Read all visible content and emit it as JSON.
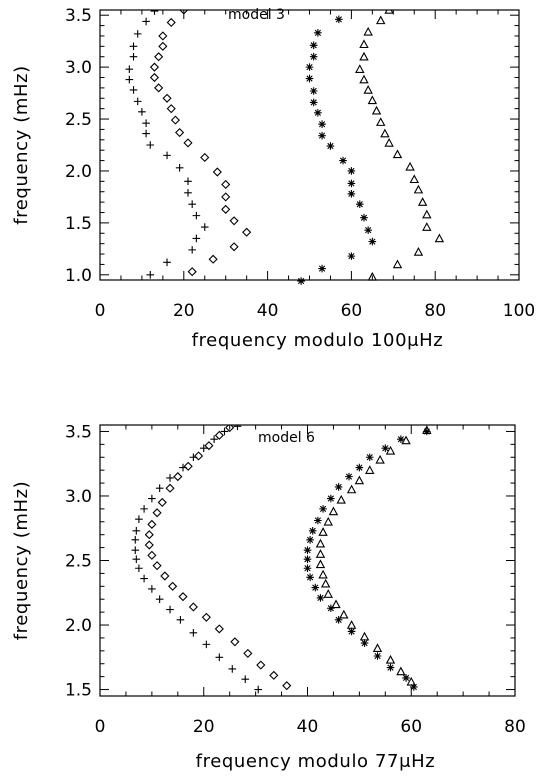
{
  "chart_data": [
    {
      "type": "scatter",
      "title": "model 3",
      "xlabel": "frequency modulo 100μHz",
      "ylabel": "frequency (mHz)",
      "xlim": [
        0,
        100
      ],
      "ylim": [
        0.95,
        3.55
      ],
      "xticks": [
        0,
        20,
        40,
        60,
        80,
        100
      ],
      "xtick_labels": [
        "0",
        "20",
        "40",
        "60",
        "80",
        "100"
      ],
      "yticks": [
        1.0,
        1.5,
        2.0,
        2.5,
        3.0,
        3.5
      ],
      "ytick_labels": [
        "1.0",
        "1.5",
        "2.0",
        "2.5",
        "3.0",
        "3.5"
      ],
      "grid": false,
      "series": [
        {
          "marker": "plus",
          "points": [
            [
              12,
              1.0
            ],
            [
              16,
              1.12
            ],
            [
              22,
              1.24
            ],
            [
              23,
              1.35
            ],
            [
              25,
              1.46
            ],
            [
              23,
              1.57
            ],
            [
              22,
              1.68
            ],
            [
              21,
              1.79
            ],
            [
              21,
              1.9
            ],
            [
              19,
              2.03
            ],
            [
              16,
              2.15
            ],
            [
              12,
              2.25
            ],
            [
              11,
              2.36
            ],
            [
              11,
              2.46
            ],
            [
              10,
              2.57
            ],
            [
              9,
              2.67
            ],
            [
              8,
              2.78
            ],
            [
              7,
              2.88
            ],
            [
              7,
              2.98
            ],
            [
              8,
              3.1
            ],
            [
              8,
              3.2
            ],
            [
              9,
              3.32
            ],
            [
              11,
              3.44
            ],
            [
              13,
              3.54
            ]
          ]
        },
        {
          "marker": "diamond",
          "points": [
            [
              22,
              1.03
            ],
            [
              27,
              1.15
            ],
            [
              32,
              1.27
            ],
            [
              35,
              1.41
            ],
            [
              32,
              1.52
            ],
            [
              30,
              1.63
            ],
            [
              30,
              1.75
            ],
            [
              30,
              1.87
            ],
            [
              28,
              1.99
            ],
            [
              25,
              2.13
            ],
            [
              21,
              2.27
            ],
            [
              19,
              2.37
            ],
            [
              18,
              2.49
            ],
            [
              17,
              2.6
            ],
            [
              16,
              2.7
            ],
            [
              14,
              2.8
            ],
            [
              13,
              2.9
            ],
            [
              13,
              3.0
            ],
            [
              14,
              3.1
            ],
            [
              15,
              3.2
            ],
            [
              15,
              3.3
            ],
            [
              17,
              3.43
            ],
            [
              20,
              3.55
            ]
          ]
        },
        {
          "marker": "asterisk",
          "points": [
            [
              48,
              0.94
            ],
            [
              53,
              1.06
            ],
            [
              60,
              1.18
            ],
            [
              65,
              1.32
            ],
            [
              64,
              1.43
            ],
            [
              63,
              1.55
            ],
            [
              62,
              1.68
            ],
            [
              60,
              1.78
            ],
            [
              60,
              1.88
            ],
            [
              60,
              2.0
            ],
            [
              58,
              2.1
            ],
            [
              55,
              2.24
            ],
            [
              53,
              2.34
            ],
            [
              53,
              2.45
            ],
            [
              52,
              2.56
            ],
            [
              51,
              2.66
            ],
            [
              51,
              2.77
            ],
            [
              50,
              2.89
            ],
            [
              50,
              3.0
            ],
            [
              51,
              3.1
            ],
            [
              51,
              3.21
            ],
            [
              52,
              3.33
            ],
            [
              57,
              3.46
            ]
          ]
        },
        {
          "marker": "triangle",
          "points": [
            [
              65,
              0.98
            ],
            [
              71,
              1.1
            ],
            [
              76,
              1.22
            ],
            [
              81,
              1.35
            ],
            [
              78,
              1.46
            ],
            [
              78,
              1.58
            ],
            [
              77,
              1.7
            ],
            [
              76,
              1.82
            ],
            [
              75,
              1.92
            ],
            [
              74,
              2.04
            ],
            [
              71,
              2.16
            ],
            [
              69,
              2.27
            ],
            [
              68,
              2.36
            ],
            [
              67,
              2.47
            ],
            [
              66,
              2.58
            ],
            [
              65,
              2.68
            ],
            [
              64,
              2.78
            ],
            [
              63,
              2.88
            ],
            [
              62,
              2.98
            ],
            [
              63,
              3.1
            ],
            [
              63,
              3.22
            ],
            [
              64,
              3.34
            ],
            [
              67,
              3.45
            ],
            [
              69,
              3.55
            ]
          ]
        }
      ]
    },
    {
      "type": "scatter",
      "title": "model 6",
      "xlabel": "frequency modulo 77μHz",
      "ylabel": "frequency (mHz)",
      "xlim": [
        0,
        80
      ],
      "ylim": [
        1.45,
        3.55
      ],
      "xticks": [
        0,
        20,
        40,
        60,
        80
      ],
      "xtick_labels": [
        "0",
        "20",
        "40",
        "60",
        "80"
      ],
      "yticks": [
        1.5,
        2.0,
        2.5,
        3.0,
        3.5
      ],
      "ytick_labels": [
        "1.5",
        "2.0",
        "2.5",
        "3.0",
        "3.5"
      ],
      "grid": false,
      "series": [
        {
          "marker": "plus",
          "points": [
            [
              30.5,
              1.5
            ],
            [
              28,
              1.58
            ],
            [
              25.5,
              1.66
            ],
            [
              23,
              1.75
            ],
            [
              20.5,
              1.85
            ],
            [
              18,
              1.94
            ],
            [
              15.5,
              2.04
            ],
            [
              13.5,
              2.12
            ],
            [
              11.5,
              2.2
            ],
            [
              10,
              2.28
            ],
            [
              8.5,
              2.36
            ],
            [
              7.5,
              2.44
            ],
            [
              7,
              2.51
            ],
            [
              6.8,
              2.58
            ],
            [
              6.8,
              2.66
            ],
            [
              7,
              2.73
            ],
            [
              7.5,
              2.82
            ],
            [
              8.5,
              2.9
            ],
            [
              10,
              2.98
            ],
            [
              11.5,
              3.06
            ],
            [
              13.5,
              3.14
            ],
            [
              16,
              3.22
            ],
            [
              18,
              3.3
            ],
            [
              20,
              3.37
            ],
            [
              22,
              3.44
            ],
            [
              24,
              3.5
            ],
            [
              26.5,
              3.54
            ]
          ]
        },
        {
          "marker": "diamond",
          "points": [
            [
              36,
              1.53
            ],
            [
              33.5,
              1.61
            ],
            [
              31,
              1.69
            ],
            [
              28.5,
              1.78
            ],
            [
              26,
              1.87
            ],
            [
              23,
              1.97
            ],
            [
              20.5,
              2.06
            ],
            [
              18,
              2.14
            ],
            [
              16,
              2.22
            ],
            [
              14,
              2.3
            ],
            [
              12.5,
              2.38
            ],
            [
              11,
              2.46
            ],
            [
              10,
              2.54
            ],
            [
              9.5,
              2.62
            ],
            [
              9.5,
              2.7
            ],
            [
              10,
              2.78
            ],
            [
              11,
              2.87
            ],
            [
              12,
              2.95
            ],
            [
              13.5,
              3.06
            ],
            [
              15,
              3.15
            ],
            [
              17,
              3.23
            ],
            [
              19,
              3.31
            ],
            [
              21,
              3.39
            ],
            [
              23,
              3.47
            ],
            [
              25,
              3.53
            ]
          ]
        },
        {
          "marker": "asterisk",
          "points": [
            [
              60.5,
              1.52
            ],
            [
              59,
              1.59
            ],
            [
              56,
              1.67
            ],
            [
              53.5,
              1.76
            ],
            [
              51,
              1.86
            ],
            [
              48.5,
              1.95
            ],
            [
              46,
              2.04
            ],
            [
              44.5,
              2.13
            ],
            [
              42.5,
              2.21
            ],
            [
              41.5,
              2.29
            ],
            [
              40.5,
              2.37
            ],
            [
              40,
              2.44
            ],
            [
              40,
              2.51
            ],
            [
              40,
              2.58
            ],
            [
              40.5,
              2.66
            ],
            [
              41,
              2.73
            ],
            [
              42,
              2.81
            ],
            [
              43,
              2.9
            ],
            [
              44.5,
              2.98
            ],
            [
              46,
              3.07
            ],
            [
              48,
              3.15
            ],
            [
              50,
              3.22
            ],
            [
              52,
              3.3
            ],
            [
              55,
              3.37
            ],
            [
              58,
              3.44
            ],
            [
              63,
              3.5
            ]
          ]
        },
        {
          "marker": "triangle",
          "points": [
            [
              60,
              1.56
            ],
            [
              58,
              1.64
            ],
            [
              56,
              1.73
            ],
            [
              53.5,
              1.82
            ],
            [
              51,
              1.91
            ],
            [
              48.5,
              2.0
            ],
            [
              47,
              2.08
            ],
            [
              45.5,
              2.16
            ],
            [
              44,
              2.24
            ],
            [
              43.5,
              2.32
            ],
            [
              43,
              2.39
            ],
            [
              42.5,
              2.47
            ],
            [
              42.5,
              2.55
            ],
            [
              42.5,
              2.63
            ],
            [
              43,
              2.72
            ],
            [
              44,
              2.8
            ],
            [
              45,
              2.88
            ],
            [
              46.5,
              2.97
            ],
            [
              48.5,
              3.05
            ],
            [
              50,
              3.12
            ],
            [
              52,
              3.2
            ],
            [
              54,
              3.28
            ],
            [
              56,
              3.35
            ],
            [
              59,
              3.43
            ],
            [
              63,
              3.51
            ]
          ]
        }
      ]
    }
  ]
}
